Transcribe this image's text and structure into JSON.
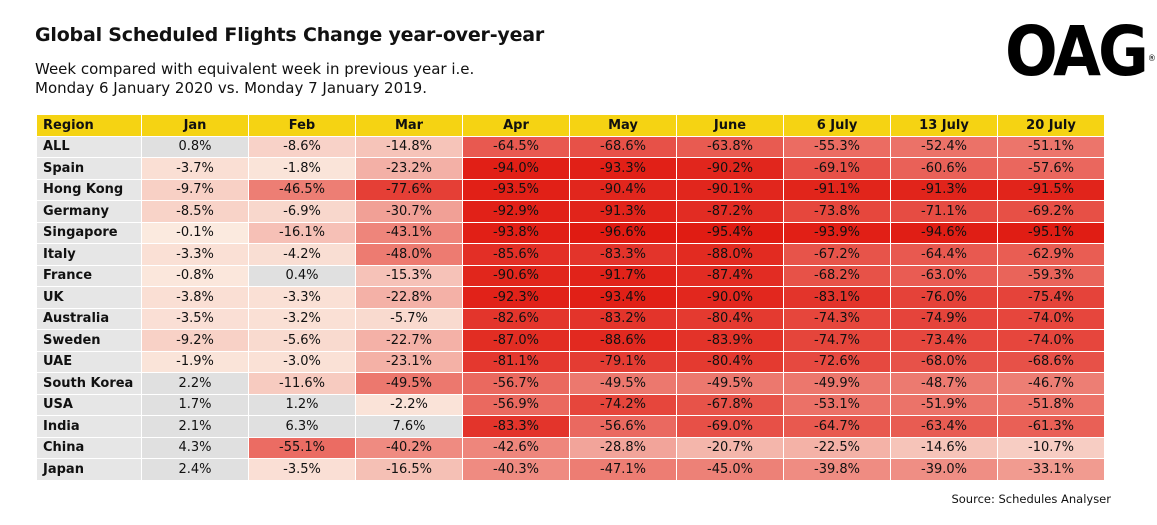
{
  "title": "Global Scheduled Flights Change year-over-year",
  "subtitle_line1": "Week compared with equivalent week in previous year i.e.",
  "subtitle_line2": "Monday 6 January 2020 vs. Monday 7 January 2019.",
  "logo_text": "OAG",
  "logo_mark": "®",
  "source": "Source: Schedules Analyser",
  "colors": {
    "header_yellow": "#f5d313",
    "region_grey": "#e6e6e6",
    "positive_grey": "#e0e0e0",
    "scale_low": "#fbeadf",
    "scale_high": "#e01b12"
  },
  "chart_data": {
    "type": "heatmap",
    "title": "Global Scheduled Flights Change year-over-year",
    "row_header": "Region",
    "columns": [
      "Jan",
      "Feb",
      "Mar",
      "Apr",
      "May",
      "June",
      "6 July",
      "13 July",
      "20 July"
    ],
    "rows": [
      {
        "region": "ALL",
        "values": [
          "0.8%",
          "-8.6%",
          "-14.8%",
          "-64.5%",
          "-68.6%",
          "-63.8%",
          "-55.3%",
          "-52.4%",
          "-51.1%"
        ]
      },
      {
        "region": "Spain",
        "values": [
          "-3.7%",
          "-1.8%",
          "-23.2%",
          "-94.0%",
          "-93.3%",
          "-90.2%",
          "-69.1%",
          "-60.6%",
          "-57.6%"
        ]
      },
      {
        "region": "Hong Kong",
        "values": [
          "-9.7%",
          "-46.5%",
          "-77.6%",
          "-93.5%",
          "-90.4%",
          "-90.1%",
          "-91.1%",
          "-91.3%",
          "-91.5%"
        ]
      },
      {
        "region": "Germany",
        "values": [
          "-8.5%",
          "-6.9%",
          "-30.7%",
          "-92.9%",
          "-91.3%",
          "-87.2%",
          "-73.8%",
          "-71.1%",
          "-69.2%"
        ]
      },
      {
        "region": "Singapore",
        "values": [
          "-0.1%",
          "-16.1%",
          "-43.1%",
          "-93.8%",
          "-96.6%",
          "-95.4%",
          "-93.9%",
          "-94.6%",
          "-95.1%"
        ]
      },
      {
        "region": "Italy",
        "values": [
          "-3.3%",
          "-4.2%",
          "-48.0%",
          "-85.6%",
          "-83.3%",
          "-88.0%",
          "-67.2%",
          "-64.4%",
          "-62.9%"
        ]
      },
      {
        "region": "France",
        "values": [
          "-0.8%",
          "0.4%",
          "-15.3%",
          "-90.6%",
          "-91.7%",
          "-87.4%",
          "-68.2%",
          "-63.0%",
          "-59.3%"
        ]
      },
      {
        "region": "UK",
        "values": [
          "-3.8%",
          "-3.3%",
          "-22.8%",
          "-92.3%",
          "-93.4%",
          "-90.0%",
          "-83.1%",
          "-76.0%",
          "-75.4%"
        ]
      },
      {
        "region": "Australia",
        "values": [
          "-3.5%",
          "-3.2%",
          "-5.7%",
          "-82.6%",
          "-83.2%",
          "-80.4%",
          "-74.3%",
          "-74.9%",
          "-74.0%"
        ]
      },
      {
        "region": "Sweden",
        "values": [
          "-9.2%",
          "-5.6%",
          "-22.7%",
          "-87.0%",
          "-88.6%",
          "-83.9%",
          "-74.7%",
          "-73.4%",
          "-74.0%"
        ]
      },
      {
        "region": "UAE",
        "values": [
          "-1.9%",
          "-3.0%",
          "-23.1%",
          "-81.1%",
          "-79.1%",
          "-80.4%",
          "-72.6%",
          "-68.0%",
          "-68.6%"
        ]
      },
      {
        "region": "South Korea",
        "values": [
          "2.2%",
          "-11.6%",
          "-49.5%",
          "-56.7%",
          "-49.5%",
          "-49.5%",
          "-49.9%",
          "-48.7%",
          "-46.7%"
        ]
      },
      {
        "region": "USA",
        "values": [
          "1.7%",
          "1.2%",
          "-2.2%",
          "-56.9%",
          "-74.2%",
          "-67.8%",
          "-53.1%",
          "-51.9%",
          "-51.8%"
        ]
      },
      {
        "region": "India",
        "values": [
          "2.1%",
          "6.3%",
          "7.6%",
          "-83.3%",
          "-56.6%",
          "-69.0%",
          "-64.7%",
          "-63.4%",
          "-61.3%"
        ]
      },
      {
        "region": "China",
        "values": [
          "4.3%",
          "-55.1%",
          "-40.2%",
          "-42.6%",
          "-28.8%",
          "-20.7%",
          "-22.5%",
          "-14.6%",
          "-10.7%"
        ]
      },
      {
        "region": "Japan",
        "values": [
          "2.4%",
          "-3.5%",
          "-16.5%",
          "-40.3%",
          "-47.1%",
          "-45.0%",
          "-39.8%",
          "-39.0%",
          "-33.1%"
        ]
      }
    ]
  }
}
